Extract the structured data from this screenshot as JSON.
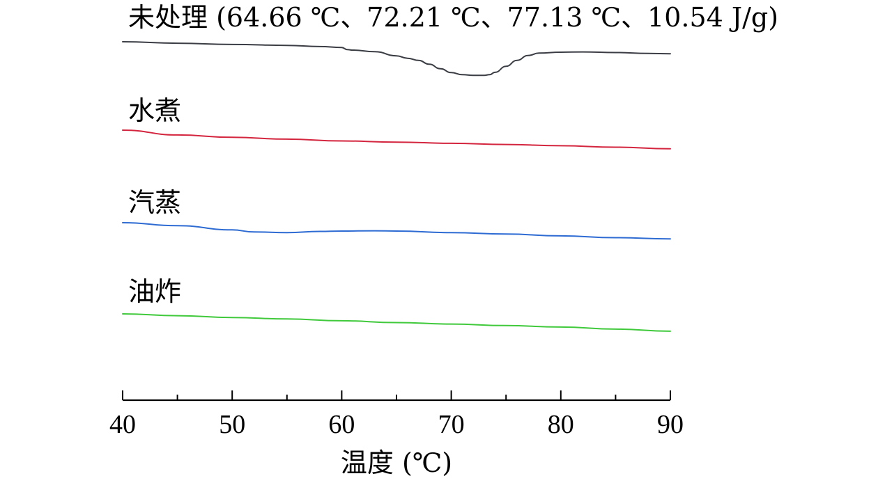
{
  "chart_data": {
    "type": "line",
    "xlabel": "温度 (℃)",
    "ylabel": "",
    "xlim": [
      40,
      90
    ],
    "x_ticks": [
      40,
      50,
      60,
      70,
      80,
      90
    ],
    "x_minor_ticks": [
      45,
      55,
      65,
      75,
      85
    ],
    "y_axis_shown": false,
    "grid": false,
    "series": [
      {
        "name": "未处理",
        "annotation": "(64.66 ℃、72.21 ℃、77.13 ℃、10.54 J/g)",
        "label": "未处理 (64.66 ℃、72.21 ℃、77.13 ℃、10.54 J/g)",
        "color": "#3a3d44",
        "x": [
          40,
          45,
          50,
          55,
          58,
          60,
          60.5,
          61,
          63,
          65,
          66,
          67,
          68,
          69,
          70,
          71,
          72,
          73,
          73.5,
          74,
          75,
          76,
          77,
          78,
          80,
          82,
          85,
          88,
          90
        ],
        "y": [
          0,
          -0.5,
          -0.9,
          -1.2,
          -1.6,
          -1.9,
          -2.6,
          -2.8,
          -3.3,
          -4.7,
          -5.5,
          -6.2,
          -7.5,
          -9.0,
          -10.3,
          -11.0,
          -11.2,
          -11.2,
          -11.0,
          -10.2,
          -8.2,
          -6.2,
          -4.6,
          -3.8,
          -3.5,
          -3.4,
          -3.6,
          -3.9,
          -4.0
        ]
      },
      {
        "name": "水煮",
        "label": "水煮",
        "color": "#d4253e",
        "x": [
          40,
          45,
          50,
          55,
          60,
          65,
          70,
          75,
          80,
          85,
          90
        ],
        "y": [
          0,
          -1.6,
          -2.4,
          -3.0,
          -3.6,
          -4.0,
          -4.4,
          -4.8,
          -5.2,
          -5.7,
          -6.2
        ]
      },
      {
        "name": "汽蒸",
        "label": "汽蒸",
        "color": "#2d6bd3",
        "x": [
          40,
          45,
          50,
          52,
          55,
          58,
          60,
          63,
          65,
          70,
          75,
          80,
          85,
          90
        ],
        "y": [
          0,
          -1.0,
          -2.4,
          -3.1,
          -3.3,
          -2.9,
          -2.8,
          -2.7,
          -2.8,
          -3.3,
          -3.8,
          -4.4,
          -5.0,
          -5.4
        ]
      },
      {
        "name": "油炸",
        "label": "油炸",
        "color": "#3fc93b",
        "x": [
          40,
          45,
          50,
          55,
          60,
          65,
          70,
          75,
          80,
          85,
          90
        ],
        "y": [
          0,
          -0.6,
          -1.2,
          -1.7,
          -2.3,
          -2.9,
          -3.4,
          -3.9,
          -4.4,
          -5.1,
          -5.8
        ]
      }
    ]
  }
}
